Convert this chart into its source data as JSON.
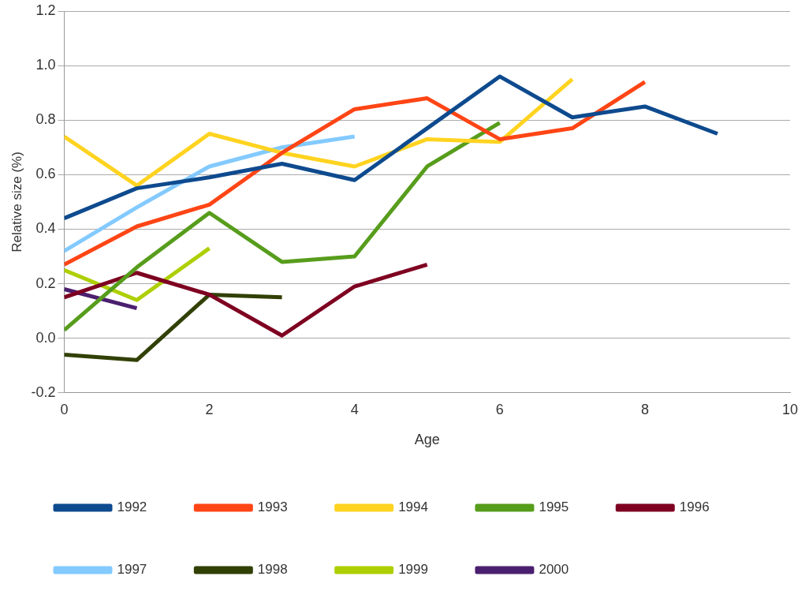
{
  "chart_data": {
    "type": "line",
    "xlabel": "Age",
    "ylabel": "Relative size (%)",
    "xlim": [
      0,
      10
    ],
    "xticks": [
      0,
      2,
      4,
      6,
      8,
      10
    ],
    "ylim": [
      -0.2,
      1.2
    ],
    "yticks": [
      {
        "value": -0.2,
        "label": "-0.2"
      },
      {
        "value": 0,
        "label": "0.0"
      },
      {
        "value": 0.2,
        "label": "0.2"
      },
      {
        "value": 0.4,
        "label": "0.4"
      },
      {
        "value": 0.6,
        "label": "0.6"
      },
      {
        "value": 0.8,
        "label": "0.8"
      },
      {
        "value": 1,
        "label": "1.0"
      },
      {
        "value": 1.2,
        "label": "1.2"
      }
    ],
    "grid": "y",
    "legend": "bottom",
    "line_style": "solid",
    "series": [
      {
        "name": "1992",
        "color": "#0e4a8e",
        "x": [
          0,
          1,
          2,
          3,
          4,
          5,
          6,
          7,
          8,
          9
        ],
        "values": [
          0.44,
          0.55,
          0.59,
          0.64,
          0.58,
          0.77,
          0.96,
          0.81,
          0.85,
          0.75
        ]
      },
      {
        "name": "1993",
        "color": "#ff4515",
        "x": [
          0,
          1,
          2,
          3,
          4,
          5,
          6,
          7,
          8
        ],
        "values": [
          0.27,
          0.41,
          0.49,
          0.68,
          0.84,
          0.88,
          0.73,
          0.77,
          0.94
        ]
      },
      {
        "name": "1994",
        "color": "#ffd320",
        "x": [
          0,
          1,
          2,
          3,
          4,
          5,
          6,
          7
        ],
        "values": [
          0.74,
          0.56,
          0.75,
          0.68,
          0.63,
          0.73,
          0.72,
          0.95
        ]
      },
      {
        "name": "1995",
        "color": "#579d1c",
        "x": [
          0,
          1,
          2,
          3,
          4,
          5,
          6
        ],
        "values": [
          0.03,
          0.26,
          0.46,
          0.28,
          0.3,
          0.63,
          0.79
        ]
      },
      {
        "name": "1996",
        "color": "#7e0021",
        "x": [
          0,
          1,
          2,
          3,
          4,
          5
        ],
        "values": [
          0.15,
          0.24,
          0.16,
          0.01,
          0.19,
          0.27
        ]
      },
      {
        "name": "1997",
        "color": "#83caff",
        "x": [
          0,
          1,
          2,
          3,
          4
        ],
        "values": [
          0.32,
          0.48,
          0.63,
          0.7,
          0.74
        ]
      },
      {
        "name": "1998",
        "color": "#314004",
        "x": [
          0,
          1,
          2,
          3
        ],
        "values": [
          -0.06,
          -0.08,
          0.16,
          0.15
        ]
      },
      {
        "name": "1999",
        "color": "#aecf00",
        "x": [
          0,
          1,
          2
        ],
        "values": [
          0.25,
          0.14,
          0.33
        ]
      },
      {
        "name": "2000",
        "color": "#4b1f6f",
        "x": [
          0,
          1
        ],
        "values": [
          0.18,
          0.11
        ]
      }
    ]
  }
}
